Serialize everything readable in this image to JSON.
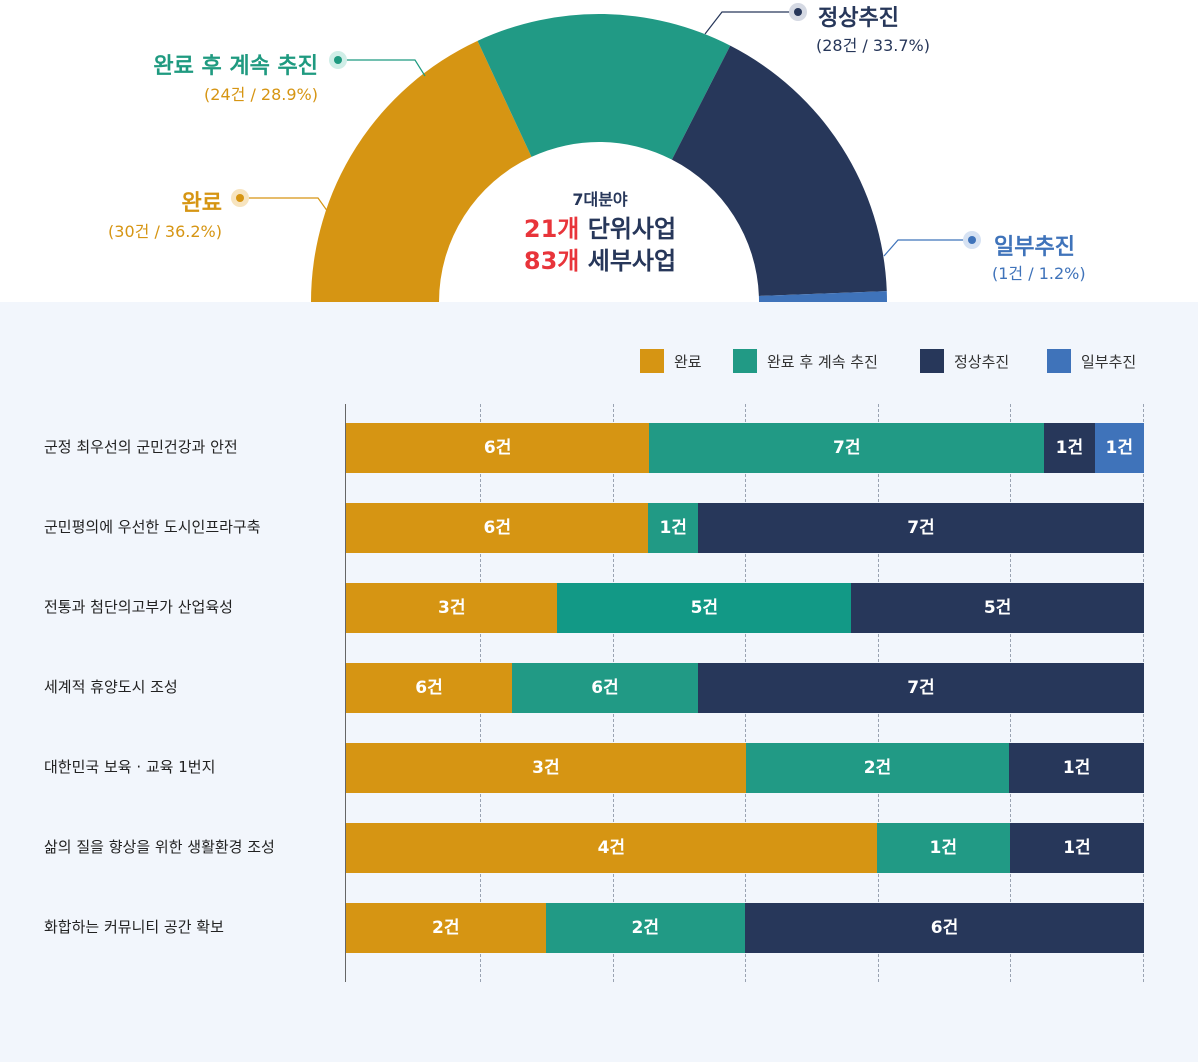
{
  "colors": {
    "done": "#d69513",
    "done_continue": "#219a85",
    "normal": "#27375a",
    "partial": "#3f73ba",
    "done_label": "#d69513",
    "done_continue_label": "#1f9a80",
    "normal_label": "#27375a",
    "partial_label": "#3f73ba",
    "highlight": "#e8343a"
  },
  "donut": {
    "center": {
      "line1": "7대분야",
      "line2_num": "21개",
      "line2_text": "단위사업",
      "line3_num": "83개",
      "line3_text": "세부사업"
    },
    "slices": [
      {
        "key": "done",
        "name": "완료",
        "detail": "(30건 / 36.2%)",
        "count": 30,
        "percent": 36.2
      },
      {
        "key": "done_continue",
        "name": "완료 후 계속 추진",
        "detail": "(24건 / 28.9%)",
        "count": 24,
        "percent": 28.9
      },
      {
        "key": "normal",
        "name": "정상추진",
        "detail": "(28건 / 33.7%)",
        "count": 28,
        "percent": 33.7
      },
      {
        "key": "partial",
        "name": "일부추진",
        "detail": "(1건 / 1.2%)",
        "count": 1,
        "percent": 1.2
      }
    ]
  },
  "chart_data": {
    "type": "bar",
    "stacked": true,
    "orientation": "horizontal",
    "legend": [
      "완료",
      "완료 후 계속 추진",
      "정상추진",
      "일부추진"
    ],
    "legend_placement": "top-right",
    "categories": [
      "군정 최우선의 군민건강과 안전",
      "군민평의에 우선한 도시인프라구축",
      "전통과 첨단의고부가 산업육성",
      "세계적 휴양도시 조성",
      "대한민국 보육 · 교육 1번지",
      "삶의 질을 향상을 위한 생활환경 조성",
      "화합하는 커뮤니티 공간 확보"
    ],
    "series": [
      {
        "name": "완료",
        "key": "done",
        "values": [
          6,
          6,
          3,
          6,
          3,
          4,
          2
        ],
        "labels": [
          "6건",
          "6건",
          "3건",
          "6건",
          "3건",
          "4건",
          "2건"
        ]
      },
      {
        "name": "완료 후 계속 추진",
        "key": "done_continue",
        "values": [
          7,
          1,
          5,
          6,
          2,
          1,
          2
        ],
        "labels": [
          "7건",
          "1건",
          "5건",
          "6건",
          "2건",
          "1건",
          "2건"
        ]
      },
      {
        "name": "정상추진",
        "key": "normal",
        "values": [
          1,
          7,
          5,
          7,
          1,
          1,
          6
        ],
        "labels": [
          "1건",
          "7건",
          "5건",
          "7건",
          "1건",
          "1건",
          "6건"
        ]
      },
      {
        "name": "일부추진",
        "key": "partial",
        "values": [
          1,
          0,
          0,
          0,
          0,
          0,
          0
        ],
        "labels": [
          "1건",
          "",
          "",
          "",
          "",
          "",
          ""
        ]
      }
    ],
    "grid": true,
    "xlim": [
      0,
      100
    ]
  }
}
